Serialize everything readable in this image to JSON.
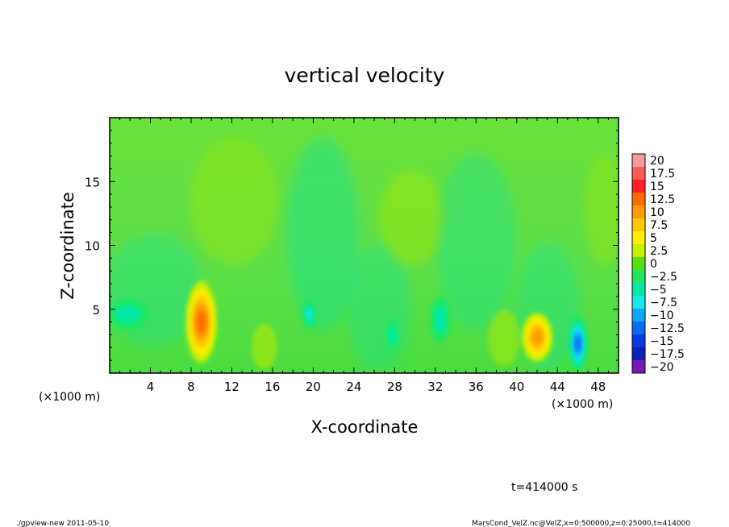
{
  "chart_data": {
    "type": "heatmap",
    "title": "vertical velocity",
    "xlabel": "X-coordinate",
    "ylabel": "Z-coordinate",
    "x_unit_left": "(×1000 m)",
    "x_unit_right": "(×1000 m)",
    "xlim": [
      0,
      50
    ],
    "ylim": [
      0,
      20
    ],
    "xticks": [
      4,
      8,
      12,
      16,
      20,
      24,
      28,
      32,
      36,
      40,
      44,
      48
    ],
    "yticks": [
      5,
      10,
      15
    ],
    "colorbar": {
      "levels": [
        20,
        17.5,
        15,
        12.5,
        10,
        7.5,
        5,
        2.5,
        0,
        -2.5,
        -5,
        -7.5,
        -10,
        -12.5,
        -15,
        -17.5,
        -20
      ],
      "labels": [
        "20",
        "17.5",
        "15",
        "12.5",
        "10",
        "7.5",
        "5",
        "2.5",
        "0",
        "−2.5",
        "−5",
        "−7.5",
        "−10",
        "−12.5",
        "−15",
        "−17.5",
        "−20"
      ],
      "colors": [
        "#f79aa0",
        "#ff5a5a",
        "#ff2020",
        "#ff6a00",
        "#ff9a00",
        "#ffc800",
        "#ffee00",
        "#c6ee00",
        "#58dd10",
        "#1ee860",
        "#00e8a6",
        "#18e8e8",
        "#10a8f8",
        "#0a6af0",
        "#0a3ae0",
        "#0a22b8",
        "#7a18b8"
      ]
    },
    "features": [
      {
        "kind": "updraft",
        "x": 9.0,
        "z": 4.0,
        "rx": 1.5,
        "rz": 3.2,
        "value": 14
      },
      {
        "kind": "updraft",
        "x": 42.0,
        "z": 2.8,
        "rx": 1.5,
        "rz": 1.9,
        "value": 11
      },
      {
        "kind": "downdraft",
        "x": 46.0,
        "z": 2.3,
        "rx": 0.9,
        "rz": 2.2,
        "value": -13
      },
      {
        "kind": "downdraft",
        "x": 19.6,
        "z": 4.6,
        "rx": 0.6,
        "rz": 1.1,
        "value": -8
      },
      {
        "kind": "downdraft",
        "x": 27.8,
        "z": 3.0,
        "rx": 0.7,
        "rz": 1.2,
        "value": -7
      },
      {
        "kind": "downdraft",
        "x": 32.5,
        "z": 4.2,
        "rx": 1.0,
        "rz": 1.8,
        "value": -7
      },
      {
        "kind": "downdraft",
        "x": 1.8,
        "z": 4.6,
        "rx": 2.0,
        "rz": 1.2,
        "value": -6
      }
    ]
  },
  "time_label": "t=414000 s",
  "footer_left": "./gpview-new   2011-05-10",
  "footer_right": "MarsCond_VelZ.nc@VelZ,x=0:500000,z=0:25000,t=414000"
}
